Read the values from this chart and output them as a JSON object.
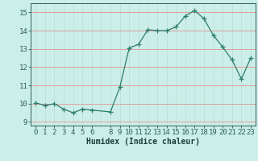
{
  "x": [
    0,
    1,
    2,
    3,
    4,
    5,
    6,
    8,
    9,
    10,
    11,
    12,
    13,
    14,
    15,
    16,
    17,
    18,
    19,
    20,
    21,
    22,
    23
  ],
  "y": [
    10.05,
    9.9,
    10.0,
    9.7,
    9.5,
    9.7,
    9.65,
    9.55,
    10.9,
    13.05,
    13.25,
    14.05,
    14.0,
    14.0,
    14.2,
    14.8,
    15.1,
    14.65,
    13.75,
    13.1,
    12.4,
    11.35,
    12.5
  ],
  "xlabel": "Humidex (Indice chaleur)",
  "ylim": [
    8.8,
    15.5
  ],
  "xlim": [
    -0.5,
    23.5
  ],
  "xticks": [
    0,
    1,
    2,
    3,
    4,
    5,
    6,
    8,
    9,
    10,
    11,
    12,
    13,
    14,
    15,
    16,
    17,
    18,
    19,
    20,
    21,
    22,
    23
  ],
  "yticks": [
    9,
    10,
    11,
    12,
    13,
    14,
    15
  ],
  "line_color": "#2d7d6d",
  "marker": "+",
  "bg_color": "#cceee8",
  "grid_major_color": "#f0c8c8",
  "grid_minor_color": "#d8ecea",
  "tick_color": "#2d5f5f",
  "label_color": "#1a3f3f",
  "font_size": 6.5,
  "xlabel_font_size": 7.0,
  "marker_size": 4,
  "linewidth": 0.9
}
